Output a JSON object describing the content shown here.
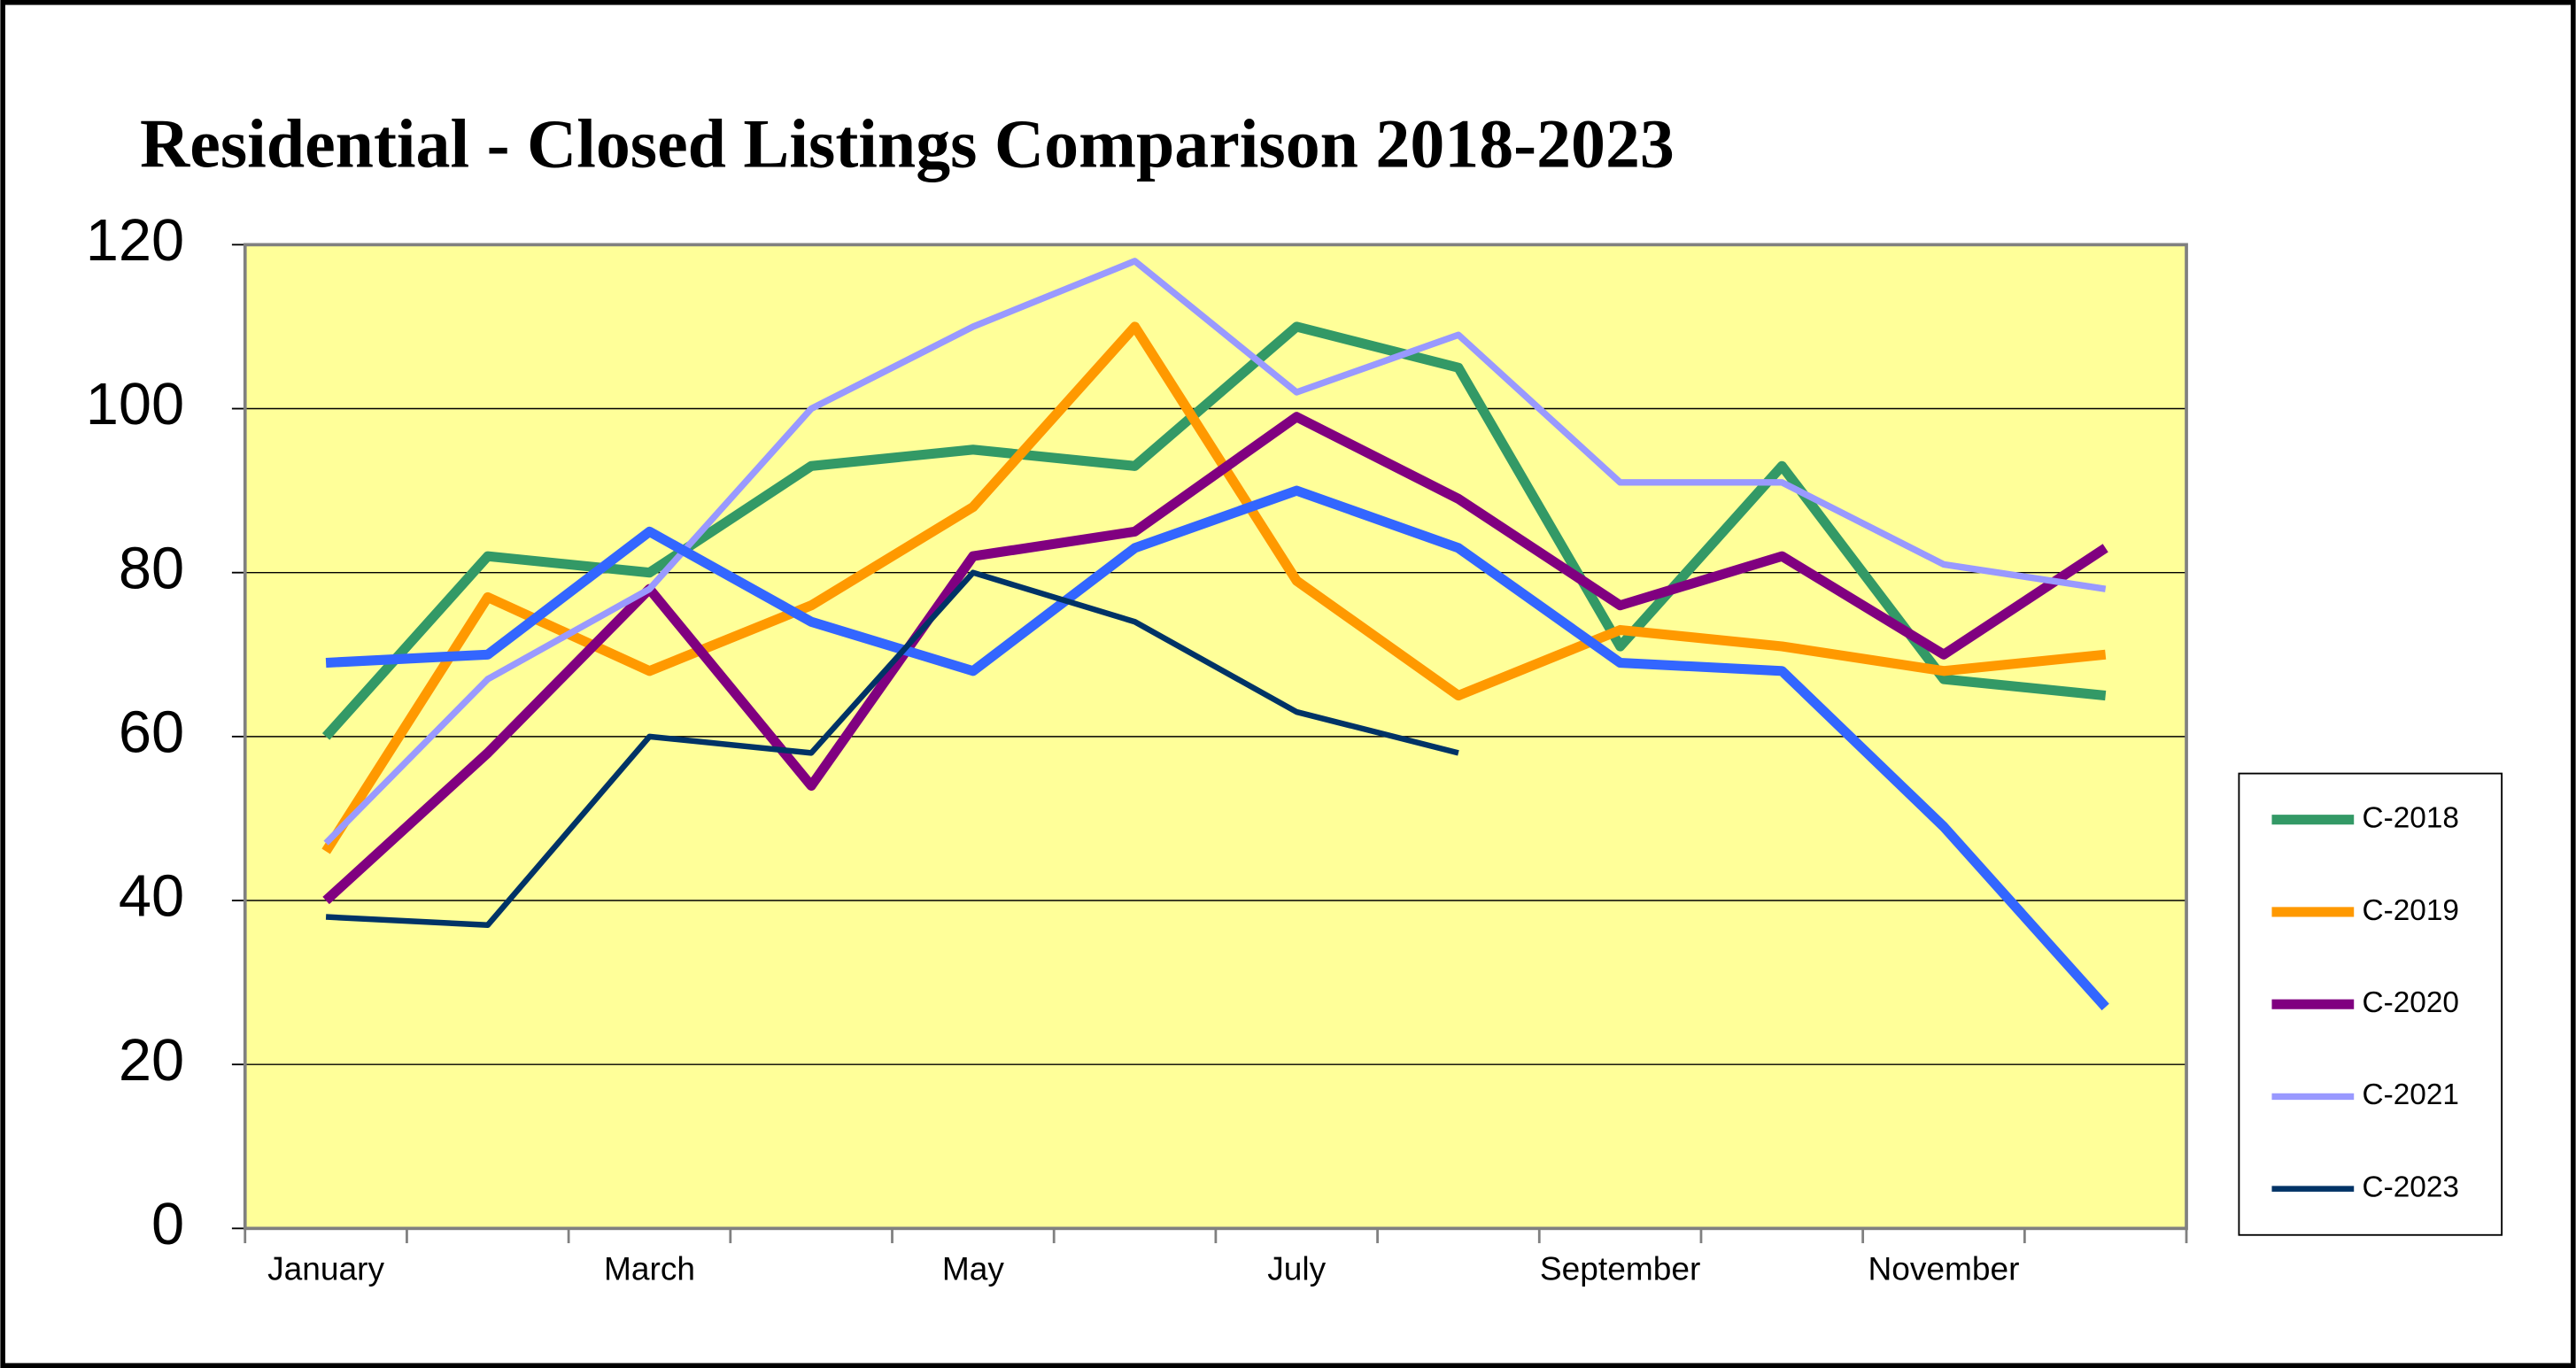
{
  "chart_data": {
    "type": "line",
    "title": "Residential - Closed Listings Comparison 2018-2023",
    "categories": [
      "January",
      null,
      "March",
      null,
      "May",
      null,
      "July",
      null,
      "September",
      null,
      "November",
      null
    ],
    "series": [
      {
        "name": "C-2018",
        "color": "#339966",
        "values": [
          60,
          82,
          80,
          93,
          95,
          93,
          110,
          105,
          71,
          93,
          67,
          65
        ]
      },
      {
        "name": "C-2019",
        "color": "#ff9900",
        "values": [
          46,
          77,
          68,
          76,
          88,
          110,
          79,
          65,
          73,
          71,
          68,
          70
        ]
      },
      {
        "name": "C-2020",
        "color": "#800080",
        "values": [
          40,
          58,
          78,
          54,
          82,
          85,
          99,
          89,
          76,
          82,
          70,
          83
        ]
      },
      {
        "name": "C-2021",
        "color": "#9999ff",
        "values": [
          47,
          67,
          78,
          100,
          110,
          118,
          102,
          109,
          91,
          91,
          81,
          78
        ]
      },
      {
        "color": "#3366ff",
        "values": [
          69,
          70,
          85,
          74,
          68,
          83,
          90,
          83,
          69,
          68,
          49,
          27
        ]
      },
      {
        "name": "C-2023",
        "color": "#003366",
        "values": [
          38,
          37,
          60,
          58,
          80,
          74,
          63,
          58,
          null,
          null,
          null,
          null
        ]
      }
    ],
    "ylim": [
      0,
      120
    ],
    "yticks": [
      0,
      20,
      40,
      60,
      80,
      100,
      120
    ],
    "grid": true,
    "plot_background": "#ffff99",
    "legend": "right"
  }
}
